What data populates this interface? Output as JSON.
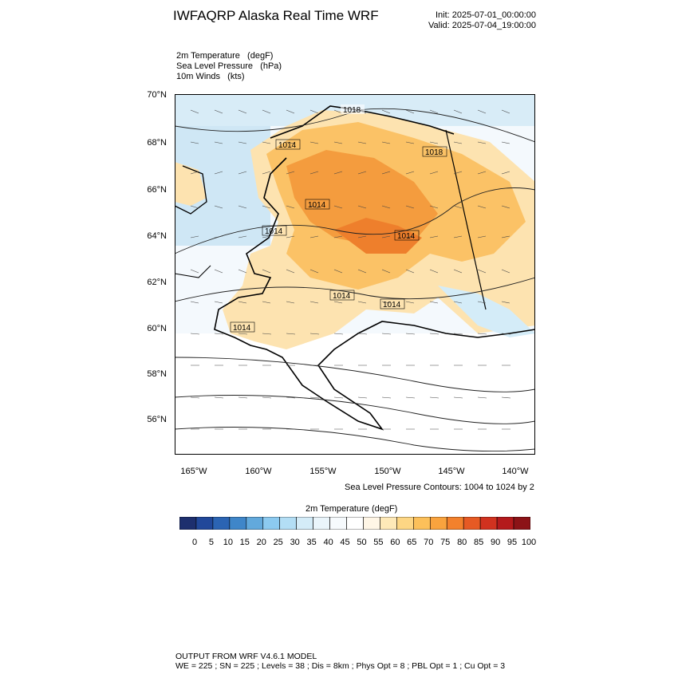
{
  "header": {
    "title": "IWFAQRP Alaska Real Time WRF",
    "init": "Init: 2025-07-01_00:00:00",
    "valid": "Valid: 2025-07-04_19:00:00"
  },
  "fields": [
    "2m Temperature   (degF)",
    "Sea Level Pressure   (hPa)",
    "10m Winds   (kts)"
  ],
  "axes": {
    "lat_labels": [
      "70°N",
      "68°N",
      "66°N",
      "64°N",
      "62°N",
      "60°N",
      "58°N",
      "56°N"
    ],
    "lon_labels": [
      "165°W",
      "160°W",
      "155°W",
      "150°W",
      "145°W",
      "140°W"
    ]
  },
  "contour_labels": [
    "1018",
    "1014",
    "1018",
    "1014",
    "1014",
    "1014",
    "1014",
    "1014",
    "1014"
  ],
  "contour_note": "Sea Level Pressure Contours: 1004 to 1024 by 2",
  "colorbar": {
    "title": "2m Temperature  (degF)",
    "labels": [
      "0",
      "5",
      "10",
      "15",
      "20",
      "25",
      "30",
      "35",
      "40",
      "45",
      "50",
      "55",
      "60",
      "65",
      "70",
      "75",
      "80",
      "85",
      "90",
      "95",
      "100"
    ],
    "colors": [
      "#1d2f6e",
      "#21489a",
      "#2b64b3",
      "#3f86c9",
      "#62a9dc",
      "#8ccaf0",
      "#b3def5",
      "#d4ecf8",
      "#eaf5fb",
      "#f6fafd",
      "#ffffff",
      "#fff6e6",
      "#fee9b8",
      "#fdd684",
      "#fcc05a",
      "#f9a33e",
      "#f3812c",
      "#e65a24",
      "#d1321f",
      "#b41a1c",
      "#8c1317"
    ]
  },
  "footer": {
    "line1": "OUTPUT FROM WRF V4.6.1 MODEL",
    "line2": "WE = 225 ; SN = 225 ; Levels = 38 ; Dis = 8km ; Phys Opt = 8 ; PBL Opt = 1 ; Cu Opt = 3"
  }
}
